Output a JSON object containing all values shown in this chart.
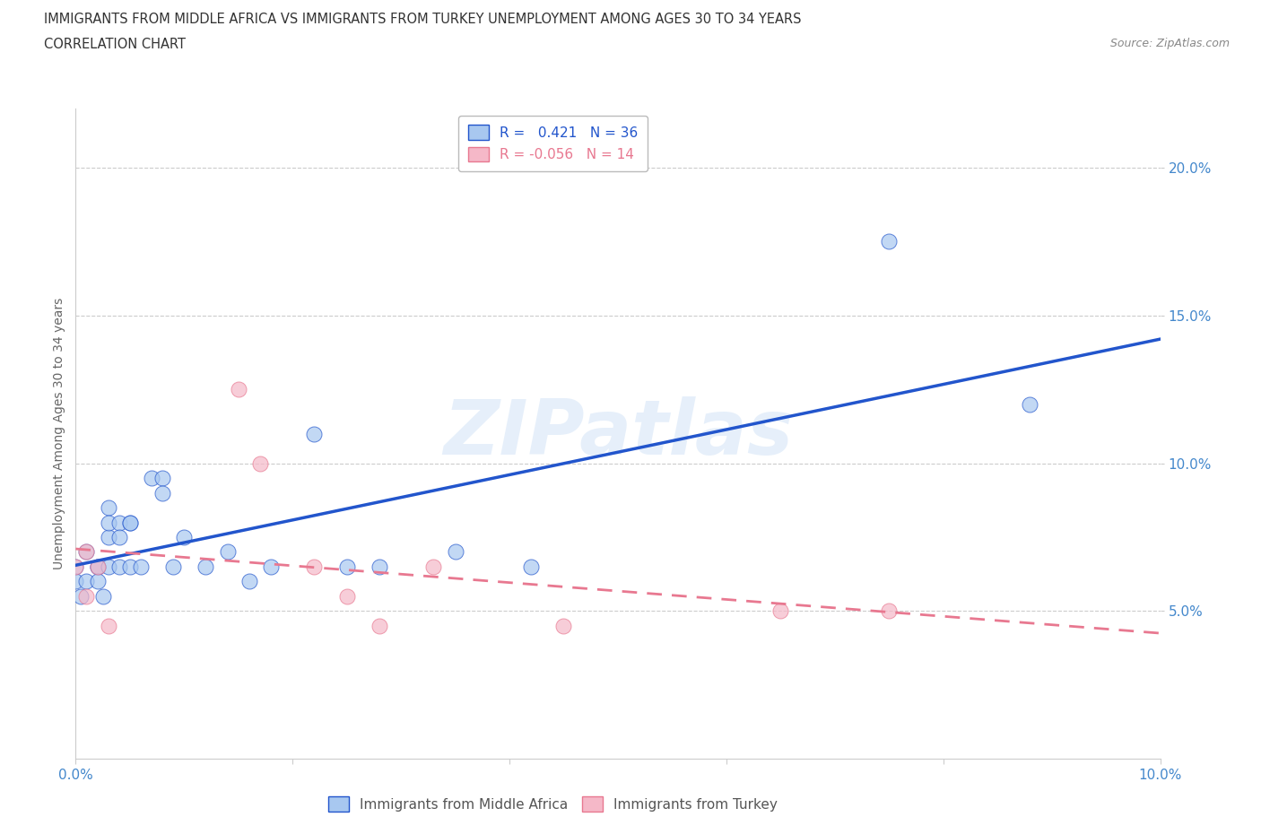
{
  "title_line1": "IMMIGRANTS FROM MIDDLE AFRICA VS IMMIGRANTS FROM TURKEY UNEMPLOYMENT AMONG AGES 30 TO 34 YEARS",
  "title_line2": "CORRELATION CHART",
  "source": "Source: ZipAtlas.com",
  "ylabel": "Unemployment Among Ages 30 to 34 years",
  "watermark": "ZIPatlas",
  "blue_R": 0.421,
  "blue_N": 36,
  "pink_R": -0.056,
  "pink_N": 14,
  "blue_label": "Immigrants from Middle Africa",
  "pink_label": "Immigrants from Turkey",
  "xlim": [
    0.0,
    0.1
  ],
  "ylim": [
    0.0,
    0.22
  ],
  "yticks": [
    0.05,
    0.1,
    0.15,
    0.2
  ],
  "blue_x": [
    0.0,
    0.0,
    0.0005,
    0.001,
    0.001,
    0.002,
    0.002,
    0.002,
    0.0025,
    0.003,
    0.003,
    0.003,
    0.003,
    0.004,
    0.004,
    0.004,
    0.005,
    0.005,
    0.005,
    0.006,
    0.007,
    0.008,
    0.008,
    0.009,
    0.01,
    0.012,
    0.014,
    0.016,
    0.018,
    0.022,
    0.025,
    0.028,
    0.035,
    0.042,
    0.075,
    0.088
  ],
  "blue_y": [
    0.065,
    0.06,
    0.055,
    0.06,
    0.07,
    0.065,
    0.065,
    0.06,
    0.055,
    0.085,
    0.065,
    0.075,
    0.08,
    0.08,
    0.075,
    0.065,
    0.08,
    0.08,
    0.065,
    0.065,
    0.095,
    0.095,
    0.09,
    0.065,
    0.075,
    0.065,
    0.07,
    0.06,
    0.065,
    0.11,
    0.065,
    0.065,
    0.07,
    0.065,
    0.175,
    0.12
  ],
  "pink_x": [
    0.0,
    0.001,
    0.001,
    0.002,
    0.003,
    0.015,
    0.017,
    0.022,
    0.025,
    0.028,
    0.033,
    0.045,
    0.065,
    0.075
  ],
  "pink_y": [
    0.065,
    0.055,
    0.07,
    0.065,
    0.045,
    0.125,
    0.1,
    0.065,
    0.055,
    0.045,
    0.065,
    0.045,
    0.05,
    0.05
  ],
  "blue_color": "#a8c8f0",
  "pink_color": "#f5b8c8",
  "blue_line_color": "#2255cc",
  "pink_line_color": "#e87890",
  "grid_color": "#cccccc",
  "axis_label_color": "#4488cc",
  "title_color": "#333333"
}
